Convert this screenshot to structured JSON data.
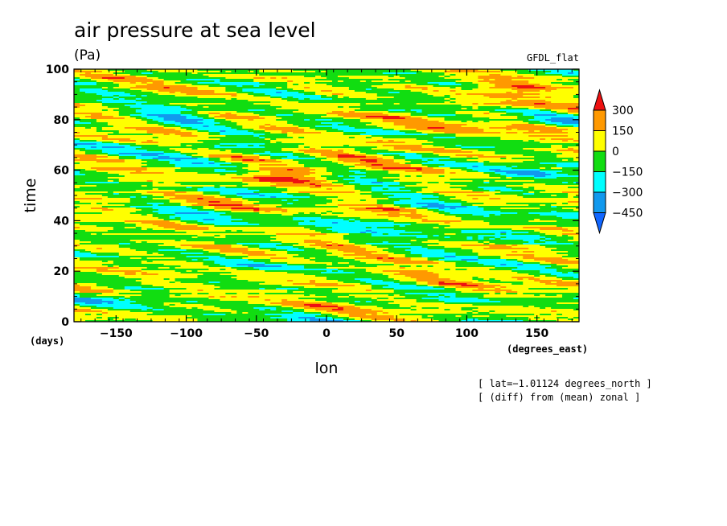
{
  "chart_data": {
    "type": "heatmap",
    "title": "air pressure at sea level",
    "units": "(Pa)",
    "dataset": "GFDL_flat",
    "xlabel": "lon",
    "xunits": "(degrees_east)",
    "ylabel": "time",
    "yunits": "(days)",
    "xlim": [
      -180,
      180
    ],
    "ylim": [
      0,
      100
    ],
    "xticks": [
      -150,
      -100,
      -50,
      0,
      50,
      100,
      150
    ],
    "xtick_labels": [
      "−150",
      "−100",
      "−50",
      "0",
      "50",
      "100",
      "150"
    ],
    "yticks": [
      0,
      20,
      40,
      60,
      80,
      100
    ],
    "ytick_labels": [
      "0",
      "20",
      "40",
      "60",
      "80",
      "100"
    ],
    "colorbar": {
      "levels": [
        300,
        150,
        0,
        -150,
        -300,
        -450
      ],
      "labels": [
        "300",
        "150",
        "0",
        "−150",
        "−300",
        "−450"
      ],
      "colors": [
        "#ee1111",
        "#ff9900",
        "#ffff00",
        "#11dd11",
        "#00ffff",
        "#1199ee",
        "#1166ff"
      ]
    },
    "features": [
      {
        "lon": -110,
        "time": 82,
        "value": -200
      },
      {
        "lon": -85,
        "time": 69,
        "value": -220
      },
      {
        "lon": -40,
        "time": 90,
        "value": -100
      },
      {
        "lon": 55,
        "time": 71,
        "value": 170
      },
      {
        "lon": 130,
        "time": 92,
        "value": 190
      },
      {
        "lon": 125,
        "time": 86,
        "value": 160
      },
      {
        "lon": -10,
        "time": 60,
        "value": 150
      },
      {
        "lon": -30,
        "time": 58,
        "value": 230
      },
      {
        "lon": 140,
        "time": 58,
        "value": -230
      },
      {
        "lon": -170,
        "time": 45,
        "value": 120
      },
      {
        "lon": 60,
        "time": 40,
        "value": -120
      },
      {
        "lon": -60,
        "time": 20,
        "value": -130
      },
      {
        "lon": -140,
        "time": 10,
        "value": -170
      },
      {
        "lon": 110,
        "time": 35,
        "value": -160
      }
    ],
    "annotations": [
      "[ lat=−1.01124 degrees_north ]",
      "[ (diff) from (mean) zonal ]"
    ]
  }
}
